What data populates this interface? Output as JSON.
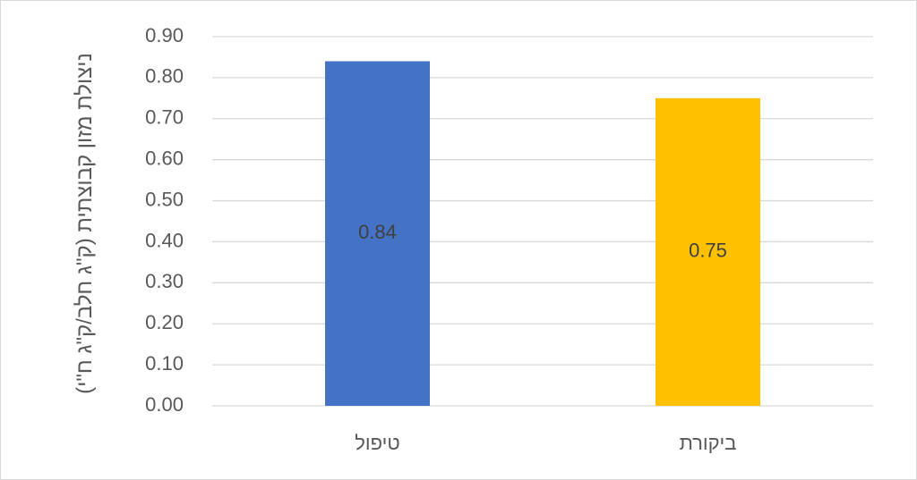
{
  "chart_data": {
    "type": "bar",
    "y_label": "ניצולת מזון קבוצתית (ק\"ג חלב/ק\"ג ח\"י)",
    "categories": [
      "טיפול",
      "ביקורת"
    ],
    "values": [
      0.84,
      0.75
    ],
    "colors": [
      "#4472c4",
      "#ffc000"
    ],
    "ylim": [
      0,
      0.9
    ],
    "yticks": [
      {
        "value": 0,
        "label": "0.00"
      },
      {
        "value": 0.1,
        "label": "0.10"
      },
      {
        "value": 0.2,
        "label": "0.20"
      },
      {
        "value": 0.3,
        "label": "0.30"
      },
      {
        "value": 0.4,
        "label": "0.40"
      },
      {
        "value": 0.5,
        "label": "0.50"
      },
      {
        "value": 0.6,
        "label": "0.60"
      },
      {
        "value": 0.7,
        "label": "0.70"
      },
      {
        "value": 0.8,
        "label": "0.80"
      },
      {
        "value": 0.9,
        "label": "0.90"
      }
    ],
    "grid": true
  }
}
